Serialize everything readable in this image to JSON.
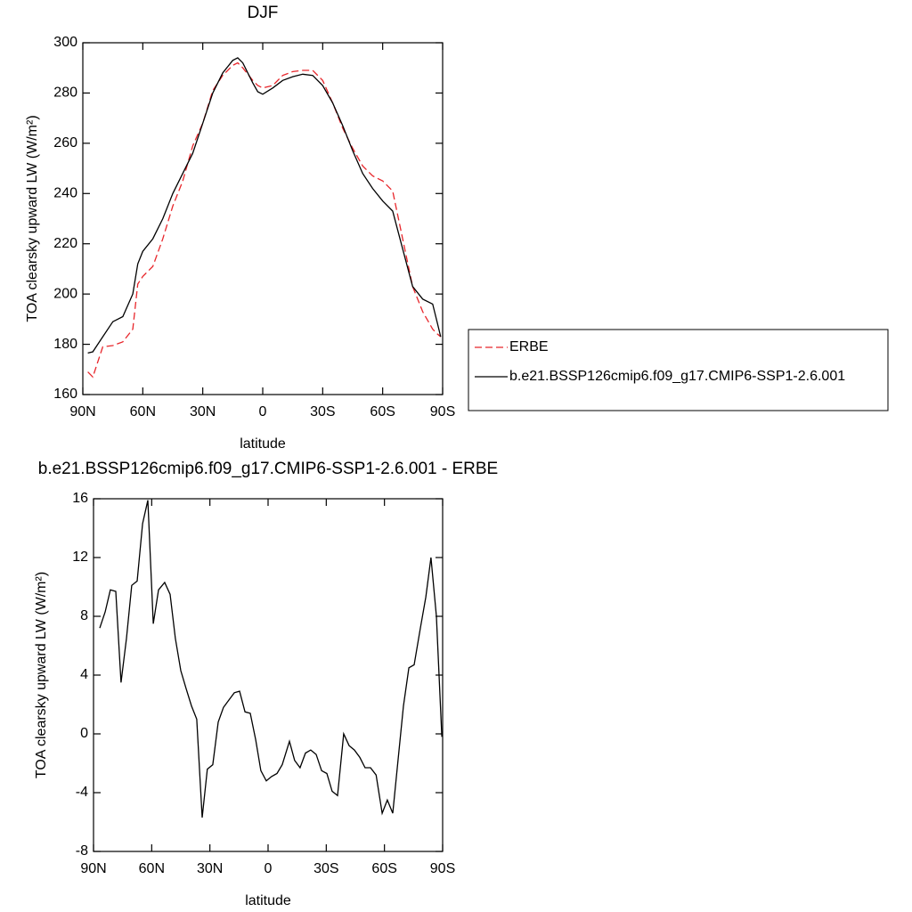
{
  "chart_data": [
    {
      "type": "line",
      "title": "DJF",
      "x_label": "latitude",
      "y_label": "TOA clearsky upward LW (W/m²)",
      "xlim": [
        90,
        -90
      ],
      "xticks": [
        {
          "value": 90,
          "label": "90N"
        },
        {
          "value": 60,
          "label": "60N"
        },
        {
          "value": 30,
          "label": "30N"
        },
        {
          "value": 0,
          "label": "0"
        },
        {
          "value": -30,
          "label": "30S"
        },
        {
          "value": -60,
          "label": "60S"
        },
        {
          "value": -90,
          "label": "90S"
        }
      ],
      "ylim": [
        160,
        300
      ],
      "yticks": [
        160,
        180,
        200,
        220,
        240,
        260,
        280,
        300
      ],
      "legend": "right",
      "x": [
        87.5,
        85,
        80,
        75,
        70,
        65,
        62.5,
        60,
        55,
        50,
        45,
        40,
        35,
        30,
        25,
        20,
        15,
        12.5,
        10,
        5,
        2.5,
        0,
        -5,
        -10,
        -15,
        -20,
        -25,
        -30,
        -35,
        -40,
        -45,
        -50,
        -55,
        -60,
        -65,
        -70,
        -75,
        -80,
        -85,
        -87.5,
        -89
      ],
      "series": [
        {
          "name": "ERBE",
          "color": "#e8262b",
          "dash": true,
          "values": [
            169,
            167,
            179,
            179.5,
            181,
            186,
            204,
            207,
            211,
            222,
            235,
            245,
            259,
            268,
            281,
            287,
            291,
            292,
            290,
            285,
            283,
            282,
            283,
            287,
            288.5,
            289,
            289,
            285,
            276,
            266,
            258,
            251,
            247,
            245,
            241,
            222,
            203,
            193,
            186,
            184,
            183
          ]
        },
        {
          "name": "b.e21.BSSP126cmip6.f09_g17.CMIP6-SSP1-2.6.001",
          "color": "#000000",
          "dash": false,
          "values": [
            176.5,
            177,
            183,
            189,
            191,
            200,
            212,
            217,
            222,
            230,
            240,
            248,
            256,
            268,
            280,
            288,
            293,
            294,
            292,
            284,
            280.5,
            279.5,
            282,
            285,
            286.5,
            287.5,
            287,
            283,
            276,
            267,
            257,
            248,
            242,
            237,
            233,
            218,
            203,
            198,
            196,
            188,
            183
          ]
        }
      ]
    },
    {
      "type": "line",
      "title": "b.e21.BSSP126cmip6.f09_g17.CMIP6-SSP1-2.6.001 - ERBE",
      "x_label": "latitude",
      "y_label": "TOA clearsky upward LW (W/m²)",
      "xlim": [
        90,
        -90
      ],
      "xticks": [
        {
          "value": 90,
          "label": "90N"
        },
        {
          "value": 60,
          "label": "60N"
        },
        {
          "value": 30,
          "label": "30N"
        },
        {
          "value": 0,
          "label": "0"
        },
        {
          "value": -30,
          "label": "30S"
        },
        {
          "value": -60,
          "label": "60S"
        },
        {
          "value": -90,
          "label": "90S"
        }
      ],
      "ylim": [
        -8,
        16
      ],
      "yticks": [
        -8,
        -4,
        0,
        4,
        8,
        12,
        16
      ],
      "x": [
        86.8,
        84,
        81.3,
        78.5,
        75.8,
        73,
        70.3,
        67.5,
        64.7,
        62,
        59.2,
        56.5,
        53.3,
        50.5,
        47.8,
        45,
        42.3,
        39.5,
        36.8,
        34,
        31.3,
        28.5,
        25.7,
        23,
        20.2,
        17.4,
        14.7,
        11.9,
        9.2,
        6.4,
        3.7,
        0.9,
        -1.8,
        -4.6,
        -7.3,
        -11,
        -13.7,
        -16.5,
        -19.3,
        -22,
        -24.8,
        -27.6,
        -30.3,
        -33,
        -35.8,
        -39,
        -41.8,
        -44.5,
        -47.3,
        -50,
        -52.8,
        -55.7,
        -58.8,
        -61.5,
        -64.3,
        -67,
        -69.8,
        -72.6,
        -75.3,
        -78.5,
        -81.3,
        -84,
        -86.8,
        -89.6
      ],
      "series": [
        {
          "color": "#000000",
          "dash": false,
          "values": [
            7.2,
            8.3,
            9.8,
            9.7,
            3.5,
            6.5,
            10.1,
            10.4,
            14.3,
            15.9,
            7.5,
            9.8,
            10.3,
            9.5,
            6.5,
            4.3,
            3.1,
            1.9,
            1.0,
            -5.7,
            -2.4,
            -2.1,
            0.8,
            1.8,
            2.3,
            2.8,
            2.9,
            1.5,
            1.4,
            -0.4,
            -2.5,
            -3.2,
            -2.9,
            -2.7,
            -2.1,
            -0.5,
            -1.8,
            -2.3,
            -1.3,
            -1.1,
            -1.4,
            -2.5,
            -2.7,
            -3.9,
            -4.2,
            0,
            -0.8,
            -1.1,
            -1.6,
            -2.3,
            -2.3,
            -2.8,
            -5.4,
            -4.5,
            -5.4,
            -1.8,
            1.9,
            4.5,
            4.7,
            7.2,
            9.3,
            12,
            8,
            -0.2
          ]
        }
      ]
    }
  ]
}
